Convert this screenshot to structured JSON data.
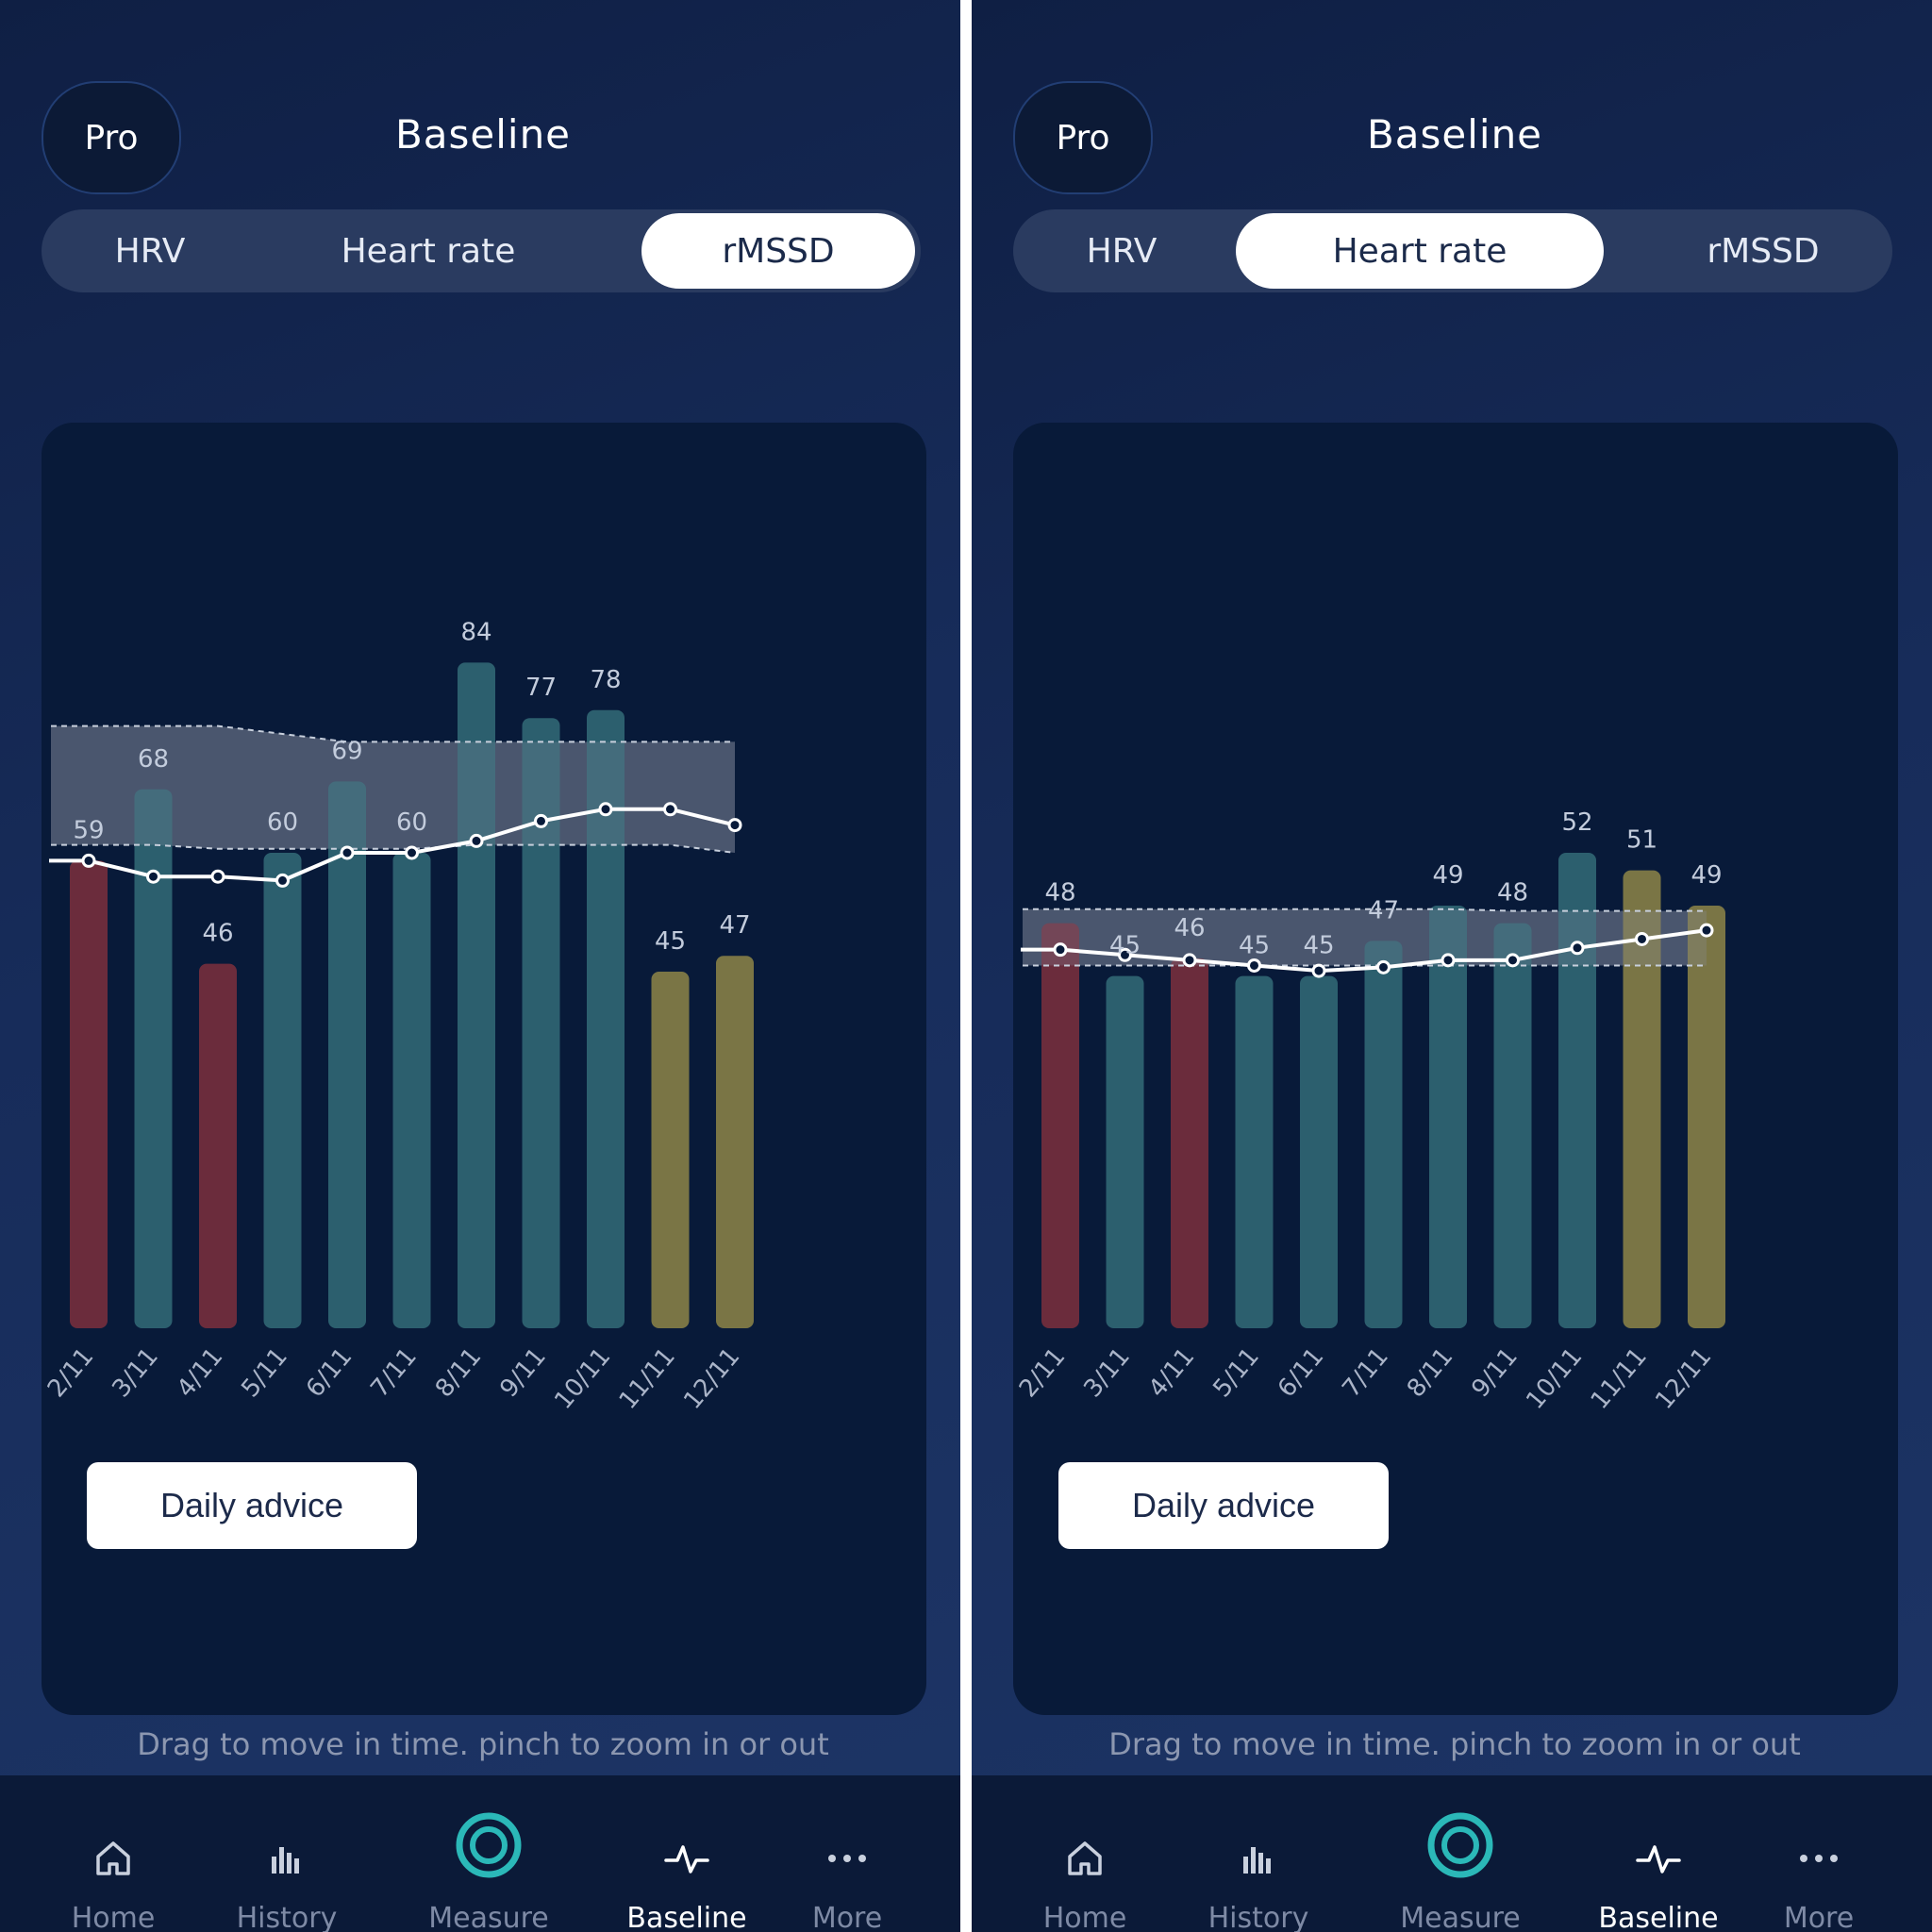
{
  "panels": [
    {
      "pro_label": "Pro",
      "title": "Baseline",
      "tabs": [
        {
          "label": "HRV",
          "active": false
        },
        {
          "label": "Heart rate",
          "active": false
        },
        {
          "label": "rMSSD",
          "active": true
        }
      ],
      "daily_advice": "Daily advice",
      "hint": "Drag to move in time. pinch to zoom in or out",
      "nav": [
        {
          "label": "Home",
          "icon": "home-icon",
          "active": false
        },
        {
          "label": "History",
          "icon": "history-icon",
          "active": false
        },
        {
          "label": "Measure",
          "icon": "measure-icon",
          "active": false
        },
        {
          "label": "Baseline",
          "icon": "baseline-icon",
          "active": true
        },
        {
          "label": "More",
          "icon": "more-icon",
          "active": false
        }
      ],
      "chart_data": {
        "type": "bar",
        "categories": [
          "2/11",
          "3/11",
          "4/11",
          "5/11",
          "6/11",
          "7/11",
          "8/11",
          "9/11",
          "10/11",
          "11/11",
          "12/11"
        ],
        "values": [
          59,
          68,
          46,
          60,
          69,
          60,
          84,
          77,
          78,
          45,
          47
        ],
        "bar_colors": [
          "#6b2c3c",
          "#2c5f6e",
          "#6b2c3c",
          "#2c5f6e",
          "#2c5f6e",
          "#2c5f6e",
          "#2c5f6e",
          "#2c5f6e",
          "#2c5f6e",
          "#7a7545",
          "#7a7545"
        ],
        "baseline": [
          59,
          57,
          57,
          56.5,
          60,
          60,
          61.5,
          64,
          65.5,
          65.5,
          63.5
        ],
        "band_upper": [
          76,
          76,
          76,
          75,
          74,
          74,
          74,
          74,
          74,
          74,
          74
        ],
        "band_lower": [
          61,
          61,
          60.5,
          60.5,
          60.5,
          60.5,
          61,
          61,
          61,
          61,
          60
        ],
        "ylim": [
          0,
          100
        ]
      }
    },
    {
      "pro_label": "Pro",
      "title": "Baseline",
      "tabs": [
        {
          "label": "HRV",
          "active": false
        },
        {
          "label": "Heart rate",
          "active": true
        },
        {
          "label": "rMSSD",
          "active": false
        }
      ],
      "daily_advice": "Daily advice",
      "hint": "Drag to move in time. pinch to zoom in or out",
      "nav": [
        {
          "label": "Home",
          "icon": "home-icon",
          "active": false
        },
        {
          "label": "History",
          "icon": "history-icon",
          "active": false
        },
        {
          "label": "Measure",
          "icon": "measure-icon",
          "active": false
        },
        {
          "label": "Baseline",
          "icon": "baseline-icon",
          "active": true
        },
        {
          "label": "More",
          "icon": "more-icon",
          "active": false
        }
      ],
      "chart_data": {
        "type": "bar",
        "categories": [
          "2/11",
          "3/11",
          "4/11",
          "5/11",
          "6/11",
          "7/11",
          "8/11",
          "9/11",
          "10/11",
          "11/11",
          "12/11"
        ],
        "values": [
          48,
          45,
          46,
          45,
          45,
          47,
          49,
          48,
          52,
          51,
          49
        ],
        "bar_colors": [
          "#6b2c3c",
          "#2c5f6e",
          "#6b2c3c",
          "#2c5f6e",
          "#2c5f6e",
          "#2c5f6e",
          "#2c5f6e",
          "#2c5f6e",
          "#2c5f6e",
          "#7a7545",
          "#7a7545"
        ],
        "baseline": [
          46.5,
          46.2,
          45.9,
          45.6,
          45.3,
          45.5,
          45.9,
          45.9,
          46.6,
          47.1,
          47.6
        ],
        "band_upper": [
          48.8,
          48.8,
          48.8,
          48.8,
          48.8,
          48.8,
          48.8,
          48.7,
          48.7,
          48.7,
          48.7
        ],
        "band_lower": [
          45.6,
          45.6,
          45.6,
          45.6,
          45.6,
          45.6,
          45.6,
          45.6,
          45.6,
          45.6,
          45.6
        ],
        "ylim": [
          25,
          70
        ]
      }
    }
  ]
}
